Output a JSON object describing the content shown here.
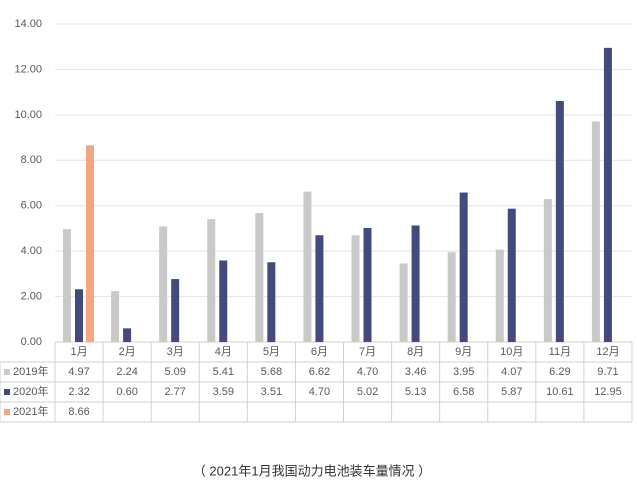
{
  "chart_data": {
    "type": "bar",
    "caption": "（ 2021年1月我国动力电池装车量情况 ）",
    "categories": [
      "1月",
      "2月",
      "3月",
      "4月",
      "5月",
      "6月",
      "7月",
      "8月",
      "9月",
      "10月",
      "11月",
      "12月"
    ],
    "series": [
      {
        "name": "2019年",
        "color": "#c9c9c9",
        "values": [
          4.97,
          2.24,
          5.09,
          5.41,
          5.68,
          6.62,
          4.7,
          3.46,
          3.95,
          4.07,
          6.29,
          9.71
        ],
        "value_labels": [
          "4.97",
          "2.24",
          "5.09",
          "5.41",
          "5.68",
          "6.62",
          "4.70",
          "3.46",
          "3.95",
          "4.07",
          "6.29",
          "9.71"
        ]
      },
      {
        "name": "2020年",
        "color": "#434a7e",
        "values": [
          2.32,
          0.6,
          2.77,
          3.59,
          3.51,
          4.7,
          5.02,
          5.13,
          6.58,
          5.87,
          10.61,
          12.95
        ],
        "value_labels": [
          "2.32",
          "0.60",
          "2.77",
          "3.59",
          "3.51",
          "4.70",
          "5.02",
          "5.13",
          "6.58",
          "5.87",
          "10.61",
          "12.95"
        ]
      },
      {
        "name": "2021年",
        "color": "#f4a582",
        "values": [
          8.66,
          null,
          null,
          null,
          null,
          null,
          null,
          null,
          null,
          null,
          null,
          null
        ],
        "value_labels": [
          "8.66",
          null,
          null,
          null,
          null,
          null,
          null,
          null,
          null,
          null,
          null,
          null
        ]
      }
    ],
    "ylim": [
      0,
      14
    ],
    "yticks": [
      {
        "value": 0,
        "label": "0.00"
      },
      {
        "value": 2,
        "label": "2.00"
      },
      {
        "value": 4,
        "label": "4.00"
      },
      {
        "value": 6,
        "label": "6.00"
      },
      {
        "value": 8,
        "label": "8.00"
      },
      {
        "value": 10,
        "label": "10.00"
      },
      {
        "value": 12,
        "label": "12.00"
      },
      {
        "value": 14,
        "label": "14.00"
      }
    ],
    "grid": true
  }
}
